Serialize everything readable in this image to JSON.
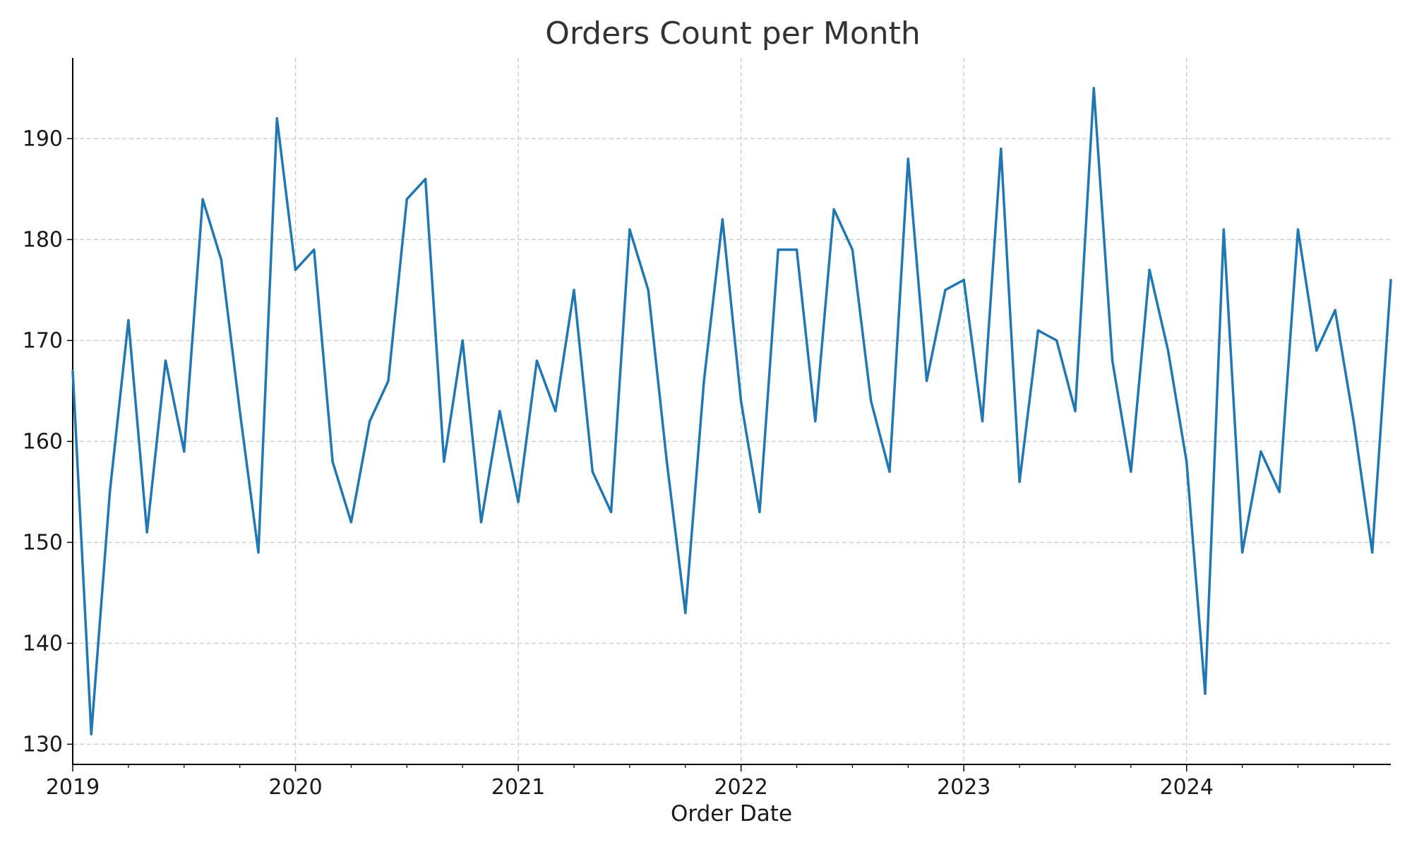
{
  "chart_data": {
    "type": "line",
    "title": "Orders Count per Month",
    "xlabel": "Order Date",
    "ylabel": "",
    "x_tick_labels": [
      "2019",
      "2020",
      "2021",
      "2022",
      "2023",
      "2024"
    ],
    "y_ticks": [
      130,
      140,
      150,
      160,
      170,
      180,
      190
    ],
    "xlim": [
      "2019-01",
      "2024-12"
    ],
    "ylim": [
      128,
      198
    ],
    "grid": true,
    "grid_style": "dashed",
    "legend": "none",
    "colors": {
      "line": "#1f77b4",
      "grid": "#cccccc",
      "axis": "#000000"
    },
    "x": [
      "2019-01",
      "2019-02",
      "2019-03",
      "2019-04",
      "2019-05",
      "2019-06",
      "2019-07",
      "2019-08",
      "2019-09",
      "2019-10",
      "2019-11",
      "2019-12",
      "2020-01",
      "2020-02",
      "2020-03",
      "2020-04",
      "2020-05",
      "2020-06",
      "2020-07",
      "2020-08",
      "2020-09",
      "2020-10",
      "2020-11",
      "2020-12",
      "2021-01",
      "2021-02",
      "2021-03",
      "2021-04",
      "2021-05",
      "2021-06",
      "2021-07",
      "2021-08",
      "2021-09",
      "2021-10",
      "2021-11",
      "2021-12",
      "2022-01",
      "2022-02",
      "2022-03",
      "2022-04",
      "2022-05",
      "2022-06",
      "2022-07",
      "2022-08",
      "2022-09",
      "2022-10",
      "2022-11",
      "2022-12",
      "2023-01",
      "2023-02",
      "2023-03",
      "2023-04",
      "2023-05",
      "2023-06",
      "2023-07",
      "2023-08",
      "2023-09",
      "2023-10",
      "2023-11",
      "2023-12",
      "2024-01",
      "2024-02",
      "2024-03",
      "2024-04",
      "2024-05",
      "2024-06",
      "2024-07",
      "2024-08",
      "2024-09",
      "2024-10",
      "2024-11",
      "2024-12"
    ],
    "series": [
      {
        "values": [
          167,
          131,
          155,
          172,
          151,
          168,
          159,
          184,
          178,
          163,
          149,
          192,
          177,
          179,
          158,
          152,
          162,
          166,
          184,
          186,
          158,
          170,
          152,
          163,
          154,
          168,
          163,
          175,
          157,
          153,
          181,
          175,
          158,
          143,
          166,
          182,
          164,
          153,
          179,
          179,
          162,
          183,
          179,
          164,
          157,
          188,
          166,
          175,
          176,
          162,
          189,
          156,
          171,
          170,
          163,
          195,
          168,
          157,
          177,
          169,
          158,
          135,
          181,
          149,
          159,
          155,
          181,
          169,
          173,
          162,
          149,
          176
        ]
      }
    ]
  }
}
